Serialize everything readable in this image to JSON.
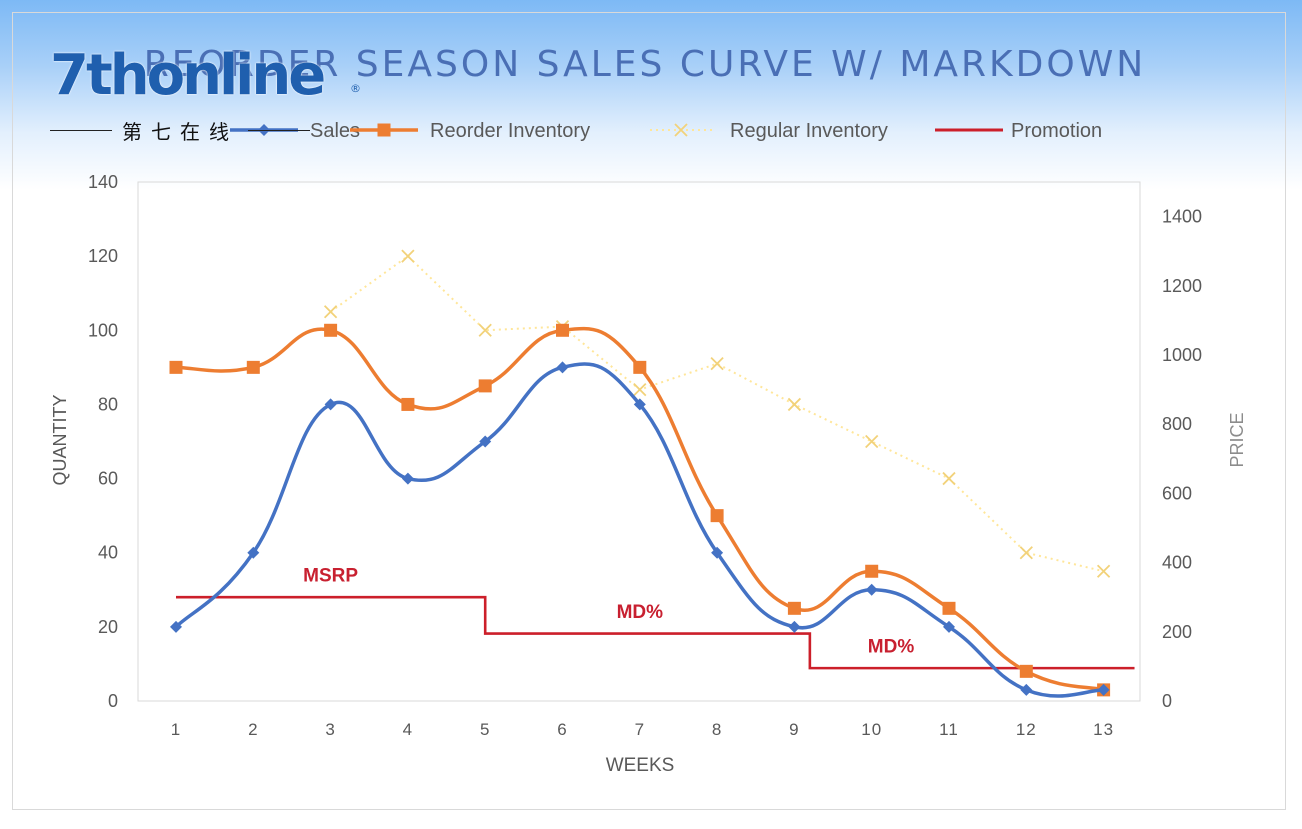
{
  "watermark": {
    "brand": "7thonline",
    "registered": "®",
    "subtitle": "第七在线"
  },
  "chart_data": {
    "type": "line",
    "title": "REORDER SEASON SALES CURVE W/ MARKDOWN",
    "xlabel": "WEEKS",
    "ylabel": "QUANTITY",
    "y2label": "PRICE",
    "categories": [
      "1",
      "2",
      "3",
      "4",
      "5",
      "6",
      "7",
      "8",
      "9",
      "10",
      "11",
      "12",
      "13"
    ],
    "ylim": [
      0,
      140
    ],
    "yticks": [
      "0",
      "20",
      "40",
      "60",
      "80",
      "100",
      "120",
      "140"
    ],
    "y2lim": [
      0,
      1500
    ],
    "y2ticks": [
      "0",
      "200",
      "400",
      "600",
      "800",
      "1000",
      "1200",
      "1400"
    ],
    "grid": false,
    "legend_position": "top",
    "series": [
      {
        "name": "Sales",
        "axis": "left",
        "style": "smooth-line-diamond",
        "color": "#4472c4",
        "values": [
          20,
          40,
          80,
          60,
          70,
          90,
          80,
          40,
          20,
          30,
          20,
          3,
          3
        ]
      },
      {
        "name": "Reorder Inventory",
        "axis": "left",
        "style": "smooth-line-square",
        "color": "#ed7d31",
        "values": [
          90,
          90,
          100,
          80,
          85,
          100,
          90,
          50,
          25,
          35,
          25,
          8,
          3
        ]
      },
      {
        "name": "Regular Inventory",
        "axis": "left",
        "style": "dotted-x",
        "color": "#ffe699",
        "values": [
          null,
          null,
          105,
          120,
          100,
          101,
          84,
          91,
          80,
          70,
          60,
          40,
          35
        ]
      },
      {
        "name": "Promotion",
        "axis": "right",
        "style": "step",
        "color": "#cc1f2a",
        "steps": [
          {
            "x_start": 1,
            "x_end": 5,
            "value": 300
          },
          {
            "x_start": 5,
            "x_end": 9.2,
            "value": 195
          },
          {
            "x_start": 9.2,
            "x_end": 13.4,
            "value": 95
          }
        ]
      }
    ],
    "annotations": [
      {
        "text": "MSRP",
        "x": 3,
        "y2": 345
      },
      {
        "text": "MD%",
        "x": 7,
        "y2": 240
      },
      {
        "text": "MD%",
        "x": 10.25,
        "y2": 140
      }
    ],
    "colors": {
      "axis_text": "#595959",
      "axis_line": "#d9d9d9",
      "title": "#4a6fb5",
      "promotion_label": "#c82030"
    }
  }
}
